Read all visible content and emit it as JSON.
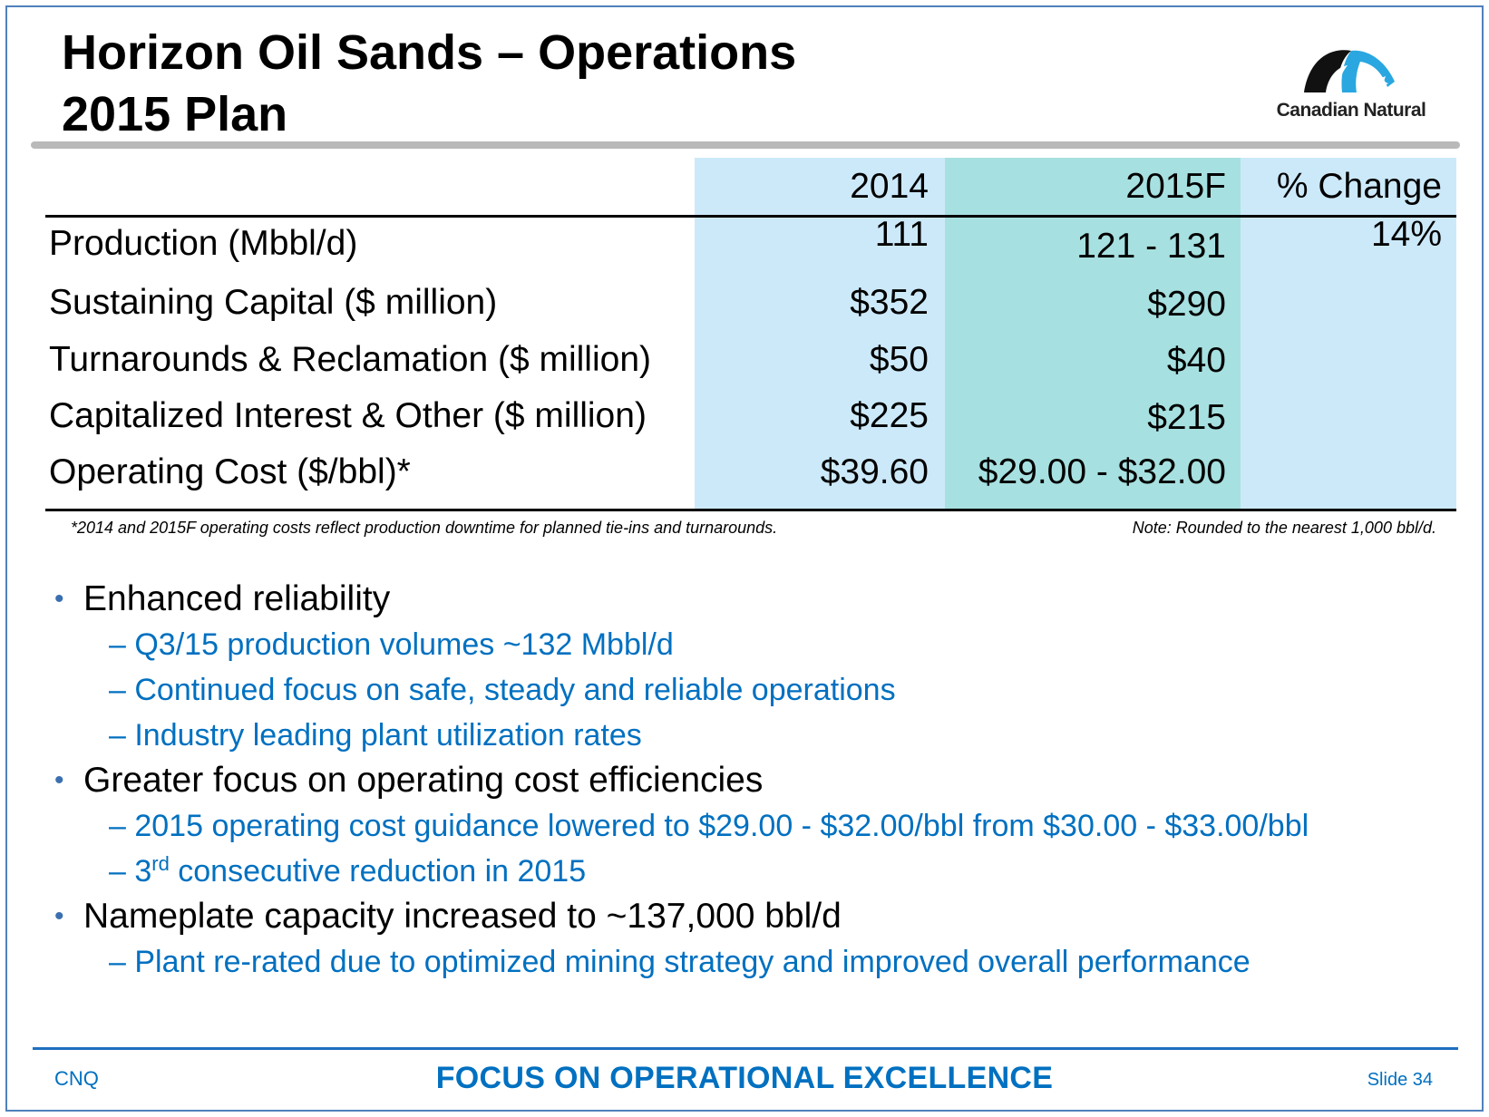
{
  "slide": {
    "title_line1": "Horizon Oil Sands – Operations",
    "title_line2": "2015 Plan",
    "logo_text": "Canadian Natural"
  },
  "table": {
    "headers": [
      "2014",
      "2015F",
      "% Change"
    ],
    "rows": [
      {
        "label": "Production (Mbbl/d)",
        "y2014": "111",
        "y2015": "121 - 131",
        "pct": "14%"
      },
      {
        "label": "Sustaining Capital ($ million)",
        "y2014": "$352",
        "y2015": "$290",
        "pct": ""
      },
      {
        "label": "Turnarounds & Reclamation ($ million)",
        "y2014": "$50",
        "y2015": "$40",
        "pct": ""
      },
      {
        "label": "Capitalized Interest & Other ($ million)",
        "y2014": "$225",
        "y2015": "$215",
        "pct": ""
      },
      {
        "label": "Operating Cost ($/bbl)*",
        "y2014": "$39.60",
        "y2015": "$29.00 - $32.00",
        "pct": ""
      }
    ],
    "footnote_left": "*2014 and 2015F operating costs reflect production downtime for planned tie-ins and turnarounds.",
    "footnote_right": "Note: Rounded to the nearest 1,000 bbl/d."
  },
  "bullets": [
    {
      "text": "Enhanced reliability",
      "subs": [
        "– Q3/15 production volumes ~132 Mbbl/d",
        "– Continued focus on safe, steady and reliable operations",
        "– Industry leading plant utilization rates"
      ]
    },
    {
      "text": "Greater focus on operating cost efficiencies",
      "subs": [
        "– 2015 operating cost guidance lowered to $29.00 - $32.00/bbl from $30.00 - $33.00/bbl"
      ],
      "sub_sup": {
        "prefix": "– 3",
        "sup": "rd",
        "suffix": " consecutive reduction in 2015"
      }
    },
    {
      "text": "Nameplate capacity increased to ~137,000 bbl/d",
      "subs": [
        "– Plant re-rated due to optimized mining strategy and improved overall performance"
      ]
    }
  ],
  "footer": {
    "left": "CNQ",
    "center": "FOCUS ON OPERATIONAL EXCELLENCE",
    "right": "Slide 34"
  },
  "colors": {
    "border": "#4f81bd",
    "col_light_blue": "#cce9fa",
    "col_teal": "#a7e0e0",
    "sub_bullet_blue": "#0070c0"
  }
}
